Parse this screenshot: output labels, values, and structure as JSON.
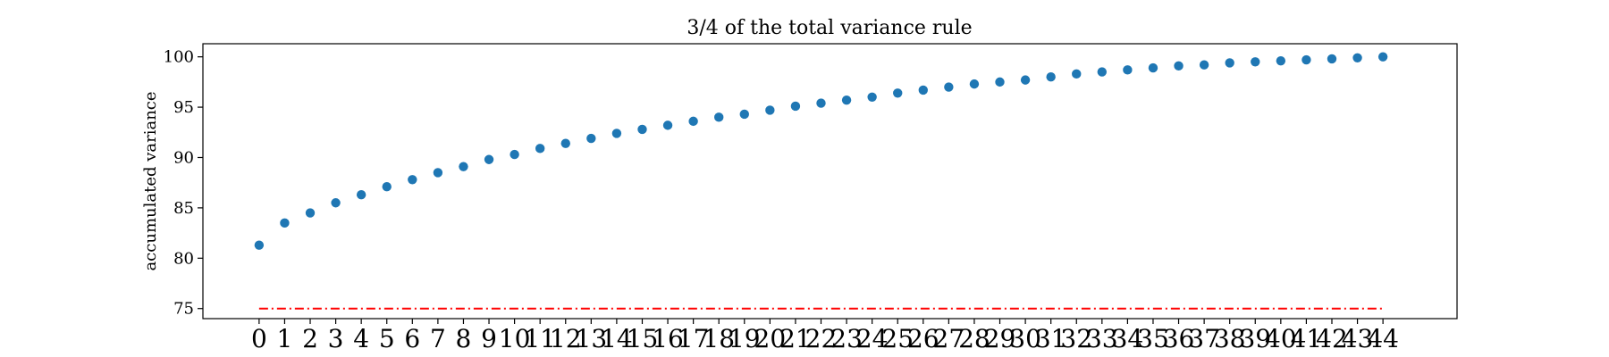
{
  "chart_data": {
    "type": "scatter",
    "title": "3/4 of the total variance rule",
    "xlabel": "",
    "ylabel": "accumulated variance",
    "x": [
      0,
      1,
      2,
      3,
      4,
      5,
      6,
      7,
      8,
      9,
      10,
      11,
      12,
      13,
      14,
      15,
      16,
      17,
      18,
      19,
      20,
      21,
      22,
      23,
      24,
      25,
      26,
      27,
      28,
      29,
      30,
      31,
      32,
      33,
      34,
      35,
      36,
      37,
      38,
      39,
      40,
      41,
      42,
      43,
      44
    ],
    "x_tick_labels": [
      "0",
      "1",
      "2",
      "3",
      "4",
      "5",
      "6",
      "7",
      "8",
      "9",
      "10",
      "11",
      "12",
      "13",
      "14",
      "15",
      "16",
      "17",
      "18",
      "19",
      "20",
      "21",
      "22",
      "23",
      "24",
      "25",
      "26",
      "27",
      "28",
      "29",
      "30",
      "31",
      "32",
      "33",
      "34",
      "35",
      "36",
      "37",
      "38",
      "39",
      "40",
      "41",
      "42",
      "43",
      "44"
    ],
    "series": [
      {
        "color": "#1f77b4",
        "values": [
          81.3,
          83.5,
          84.5,
          85.5,
          86.3,
          87.1,
          87.8,
          88.5,
          89.1,
          89.8,
          90.3,
          90.9,
          91.4,
          91.9,
          92.4,
          92.8,
          93.2,
          93.6,
          94.0,
          94.3,
          94.7,
          95.1,
          95.4,
          95.7,
          96.0,
          96.4,
          96.7,
          97.0,
          97.3,
          97.5,
          97.7,
          98.0,
          98.3,
          98.5,
          98.7,
          98.9,
          99.1,
          99.2,
          99.4,
          99.5,
          99.6,
          99.7,
          99.8,
          99.9,
          100.0
        ]
      }
    ],
    "threshold": {
      "value": 75,
      "color": "#ff0000",
      "style": "dash-dot"
    },
    "yticks": [
      75,
      80,
      85,
      90,
      95,
      100
    ],
    "ylim": [
      74.0,
      101.3
    ],
    "xlim": [
      -2.2,
      46.9
    ],
    "grid": false,
    "legend": "none"
  }
}
